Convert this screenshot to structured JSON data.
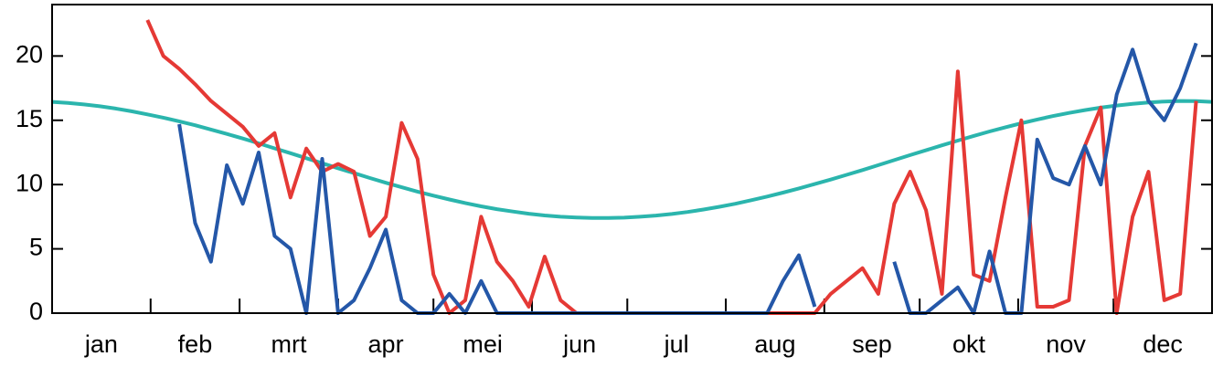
{
  "chart_data": {
    "type": "line",
    "categories": [
      "jan",
      "feb",
      "mrt",
      "apr",
      "mei",
      "jun",
      "jul",
      "aug",
      "sep",
      "okt",
      "nov",
      "dec"
    ],
    "x": [
      0,
      5,
      10,
      15,
      20,
      25,
      30,
      35,
      40,
      45,
      50,
      55,
      60,
      65,
      70,
      75,
      80,
      85,
      90,
      95,
      100,
      105,
      110,
      115,
      120,
      125,
      130,
      135,
      140,
      145,
      150,
      155,
      160,
      165,
      170,
      175,
      180,
      185,
      190,
      195,
      200,
      205,
      210,
      215,
      220,
      225,
      230,
      235,
      240,
      245,
      250,
      255,
      260,
      265,
      270,
      275,
      280,
      285,
      290,
      295,
      300,
      305,
      310,
      315,
      320,
      325,
      330,
      335,
      340,
      345,
      350,
      355,
      360,
      365
    ],
    "xlim": [
      0,
      365
    ],
    "ylim": [
      0,
      24
    ],
    "yticks": [
      0,
      5,
      10,
      15,
      20
    ],
    "series": [
      {
        "color": "#2bb5ad",
        "values": [
          16.43,
          16.35,
          16.23,
          16.09,
          15.91,
          15.7,
          15.46,
          15.2,
          14.92,
          14.61,
          14.28,
          13.94,
          13.58,
          13.21,
          12.82,
          12.44,
          12.05,
          11.66,
          11.27,
          10.89,
          10.51,
          10.14,
          9.79,
          9.45,
          9.14,
          8.84,
          8.56,
          8.31,
          8.09,
          7.9,
          7.73,
          7.6,
          7.5,
          7.44,
          7.4,
          7.4,
          7.43,
          7.5,
          7.59,
          7.71,
          7.87,
          8.06,
          8.27,
          8.51,
          8.78,
          9.07,
          9.37,
          9.7,
          10.04,
          10.39,
          10.76,
          11.13,
          11.51,
          11.9,
          12.29,
          12.67,
          13.05,
          13.42,
          13.78,
          14.13,
          14.46,
          14.77,
          15.06,
          15.33,
          15.57,
          15.79,
          15.98,
          16.15,
          16.28,
          16.39,
          16.46,
          16.5,
          16.49,
          16.43
        ]
      },
      {
        "color": "#e53935",
        "values": [
          null,
          null,
          null,
          null,
          null,
          null,
          22.8,
          20,
          19,
          17.8,
          16.5,
          15.5,
          14.5,
          13,
          14,
          9,
          12.8,
          11,
          11.6,
          11,
          6,
          7.5,
          14.8,
          12,
          3,
          0,
          1,
          7.5,
          4,
          2.5,
          0.5,
          4.4,
          1,
          0,
          0,
          0,
          0,
          0,
          0,
          0,
          0,
          0,
          0,
          0,
          0,
          0,
          0,
          0,
          0,
          1.5,
          2.5,
          3.5,
          1.5,
          8.5,
          11,
          8,
          1.5,
          18.8,
          3,
          2.5,
          9,
          15,
          0.5,
          0.5,
          1,
          13,
          16,
          0,
          7.5,
          11,
          1,
          1.5,
          16.5,
          null
        ]
      },
      {
        "color": "#2457a8",
        "values": [
          null,
          null,
          null,
          null,
          null,
          null,
          null,
          null,
          14.7,
          7,
          4,
          11.5,
          8.5,
          12.5,
          6,
          5,
          0,
          12,
          0,
          1,
          3.5,
          6.5,
          1,
          0,
          0,
          1.5,
          0,
          2.5,
          0,
          0,
          0,
          0,
          0,
          0,
          0,
          0,
          0,
          0,
          0,
          0,
          0,
          0,
          0,
          0,
          0,
          0,
          2.5,
          4.5,
          0.5,
          null,
          null,
          null,
          null,
          4,
          0,
          0,
          1,
          2,
          0,
          4.8,
          0,
          0,
          13.5,
          10.5,
          10,
          13,
          10,
          17,
          20.5,
          16.5,
          15,
          17.5,
          21,
          null
        ]
      }
    ]
  }
}
